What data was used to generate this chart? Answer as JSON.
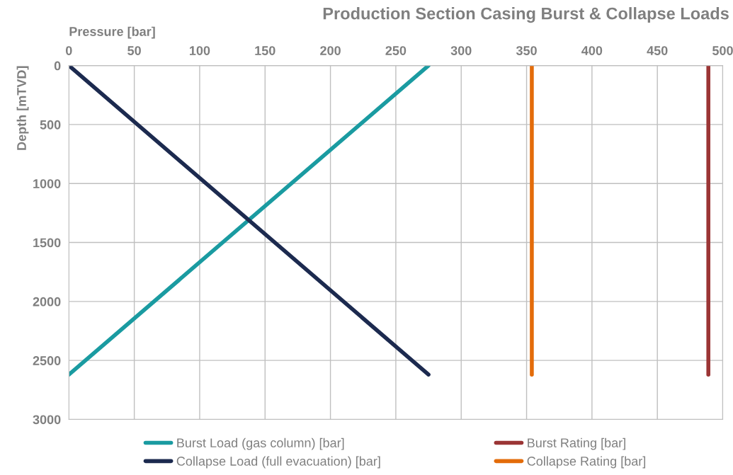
{
  "chart_data": {
    "type": "line",
    "title": "Production Section Casing Burst & Collapse Loads",
    "xlabel": "Pressure [bar]",
    "ylabel": "Depth [mTVD]",
    "series": [
      {
        "name": "Burst Load (gas column) [bar]",
        "color": "#1a9ba1",
        "x": [
          275,
          0
        ],
        "values": [
          0,
          2620
        ]
      },
      {
        "name": "Collapse Load (full evacuation) [bar]",
        "color": "#1c2a4f",
        "x": [
          0,
          275
        ],
        "values": [
          0,
          2620
        ]
      },
      {
        "name": "Burst Rating [bar]",
        "color": "#9b3535",
        "x": [
          489,
          489
        ],
        "values": [
          0,
          2620
        ]
      },
      {
        "name": "Collapse Rating [bar]",
        "color": "#e36c0a",
        "x": [
          354,
          354
        ],
        "values": [
          0,
          2620
        ]
      }
    ],
    "xlim": [
      0,
      500
    ],
    "xticks": [
      0,
      50,
      100,
      150,
      200,
      250,
      300,
      350,
      400,
      450,
      500
    ],
    "ylim": [
      3000,
      0
    ],
    "yticks": [
      0,
      500,
      1000,
      1500,
      2000,
      2500,
      3000
    ],
    "grid": true,
    "legend": "bottom",
    "marker": "none",
    "line_style": "solid"
  }
}
